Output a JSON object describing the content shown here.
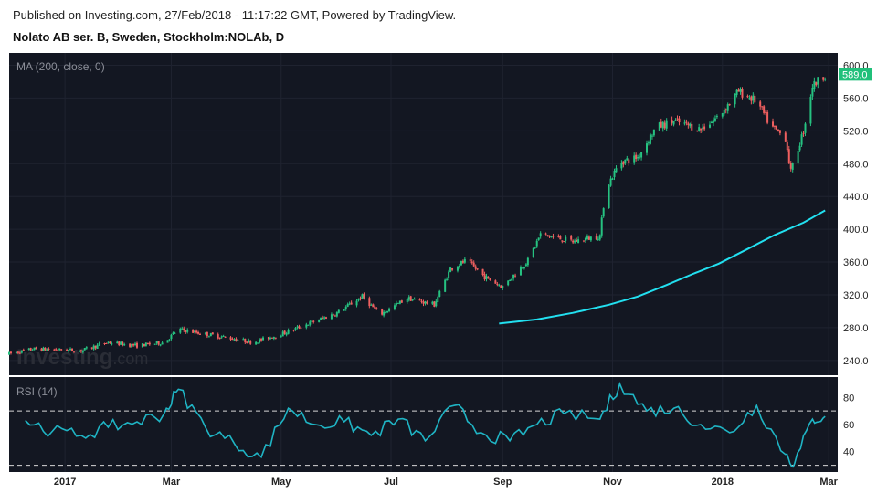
{
  "header": {
    "published": "Published on Investing.com, 27/Feb/2018 - 11:17:22 GMT, Powered by TradingView.",
    "symbol": "Nolato AB ser. B, Sweden, Stockholm:NOLAb, D"
  },
  "watermark": {
    "main": "Investing",
    "suffix": ".com"
  },
  "colors": {
    "background": "#131722",
    "up": "#26c281",
    "down": "#ef5f5f",
    "ma": "#22e0f0",
    "rsi": "#1fb4c4",
    "last_price_badge": "#20c07a"
  },
  "chart_data": [
    {
      "type": "candlestick",
      "indicator_label": "MA (200, close, 0)",
      "y_ticks": [
        240,
        280,
        320,
        360,
        400,
        440,
        480,
        520,
        560,
        600
      ],
      "ylim": [
        222,
        615
      ],
      "last_price": "589.0",
      "x_ticks": [
        "2017",
        "Mar",
        "May",
        "Jul",
        "Sep",
        "Nov",
        "2018",
        "Mar"
      ],
      "anchors": [
        {
          "date": "2016-12-01",
          "price": 248
        },
        {
          "date": "2016-12-15",
          "price": 254
        },
        {
          "date": "2017-01-10",
          "price": 252
        },
        {
          "date": "2017-01-25",
          "price": 262
        },
        {
          "date": "2017-02-10",
          "price": 258
        },
        {
          "date": "2017-02-25",
          "price": 262
        },
        {
          "date": "2017-03-05",
          "price": 278
        },
        {
          "date": "2017-03-20",
          "price": 272
        },
        {
          "date": "2017-04-01",
          "price": 268
        },
        {
          "date": "2017-04-15",
          "price": 262
        },
        {
          "date": "2017-05-01",
          "price": 272
        },
        {
          "date": "2017-05-15",
          "price": 284
        },
        {
          "date": "2017-06-01",
          "price": 298
        },
        {
          "date": "2017-06-15",
          "price": 318
        },
        {
          "date": "2017-06-25",
          "price": 296
        },
        {
          "date": "2017-07-10",
          "price": 316
        },
        {
          "date": "2017-07-25",
          "price": 308
        },
        {
          "date": "2017-08-03",
          "price": 352
        },
        {
          "date": "2017-08-12",
          "price": 362
        },
        {
          "date": "2017-08-22",
          "price": 342
        },
        {
          "date": "2017-09-01",
          "price": 330
        },
        {
          "date": "2017-09-15",
          "price": 362
        },
        {
          "date": "2017-09-22",
          "price": 394
        },
        {
          "date": "2017-10-10",
          "price": 385
        },
        {
          "date": "2017-10-25",
          "price": 392
        },
        {
          "date": "2017-10-28",
          "price": 448
        },
        {
          "date": "2017-11-05",
          "price": 482
        },
        {
          "date": "2017-11-15",
          "price": 488
        },
        {
          "date": "2017-11-25",
          "price": 524
        },
        {
          "date": "2017-12-05",
          "price": 532
        },
        {
          "date": "2017-12-20",
          "price": 522
        },
        {
          "date": "2017-12-30",
          "price": 538
        },
        {
          "date": "2018-01-10",
          "price": 568
        },
        {
          "date": "2018-01-20",
          "price": 556
        },
        {
          "date": "2018-01-28",
          "price": 525
        },
        {
          "date": "2018-02-05",
          "price": 512
        },
        {
          "date": "2018-02-08",
          "price": 470
        },
        {
          "date": "2018-02-15",
          "price": 520
        },
        {
          "date": "2018-02-20",
          "price": 575
        },
        {
          "date": "2018-02-27",
          "price": 589
        }
      ],
      "moving_average": [
        {
          "date": "2017-08-30",
          "value": 285
        },
        {
          "date": "2017-09-20",
          "value": 290
        },
        {
          "date": "2017-10-10",
          "value": 298
        },
        {
          "date": "2017-10-30",
          "value": 308
        },
        {
          "date": "2017-11-15",
          "value": 318
        },
        {
          "date": "2017-12-01",
          "value": 332
        },
        {
          "date": "2017-12-15",
          "value": 345
        },
        {
          "date": "2017-12-30",
          "value": 358
        },
        {
          "date": "2018-01-15",
          "value": 376
        },
        {
          "date": "2018-01-30",
          "value": 393
        },
        {
          "date": "2018-02-15",
          "value": 408
        },
        {
          "date": "2018-02-27",
          "value": 423
        }
      ]
    },
    {
      "type": "line",
      "indicator_label": "RSI (14)",
      "y_ticks": [
        40,
        60,
        80
      ],
      "ylim": [
        25,
        95
      ],
      "bands": [
        30,
        70
      ],
      "x": [
        "2016-12-10",
        "2016-12-25",
        "2017-01-10",
        "2017-01-25",
        "2017-02-10",
        "2017-02-25",
        "2017-03-05",
        "2017-03-20",
        "2017-04-05",
        "2017-04-20",
        "2017-05-05",
        "2017-05-20",
        "2017-06-05",
        "2017-06-20",
        "2017-07-05",
        "2017-07-20",
        "2017-08-05",
        "2017-08-20",
        "2017-09-05",
        "2017-09-20",
        "2017-10-05",
        "2017-10-25",
        "2017-11-05",
        "2017-11-20",
        "2017-12-05",
        "2017-12-20",
        "2018-01-05",
        "2018-01-20",
        "2018-02-05",
        "2018-02-10",
        "2018-02-20",
        "2018-02-27"
      ],
      "values": [
        63,
        55,
        52,
        58,
        62,
        68,
        86,
        58,
        46,
        36,
        72,
        60,
        62,
        52,
        64,
        48,
        74,
        54,
        48,
        60,
        68,
        64,
        90,
        70,
        72,
        60,
        54,
        74,
        38,
        31,
        64,
        66
      ]
    }
  ]
}
